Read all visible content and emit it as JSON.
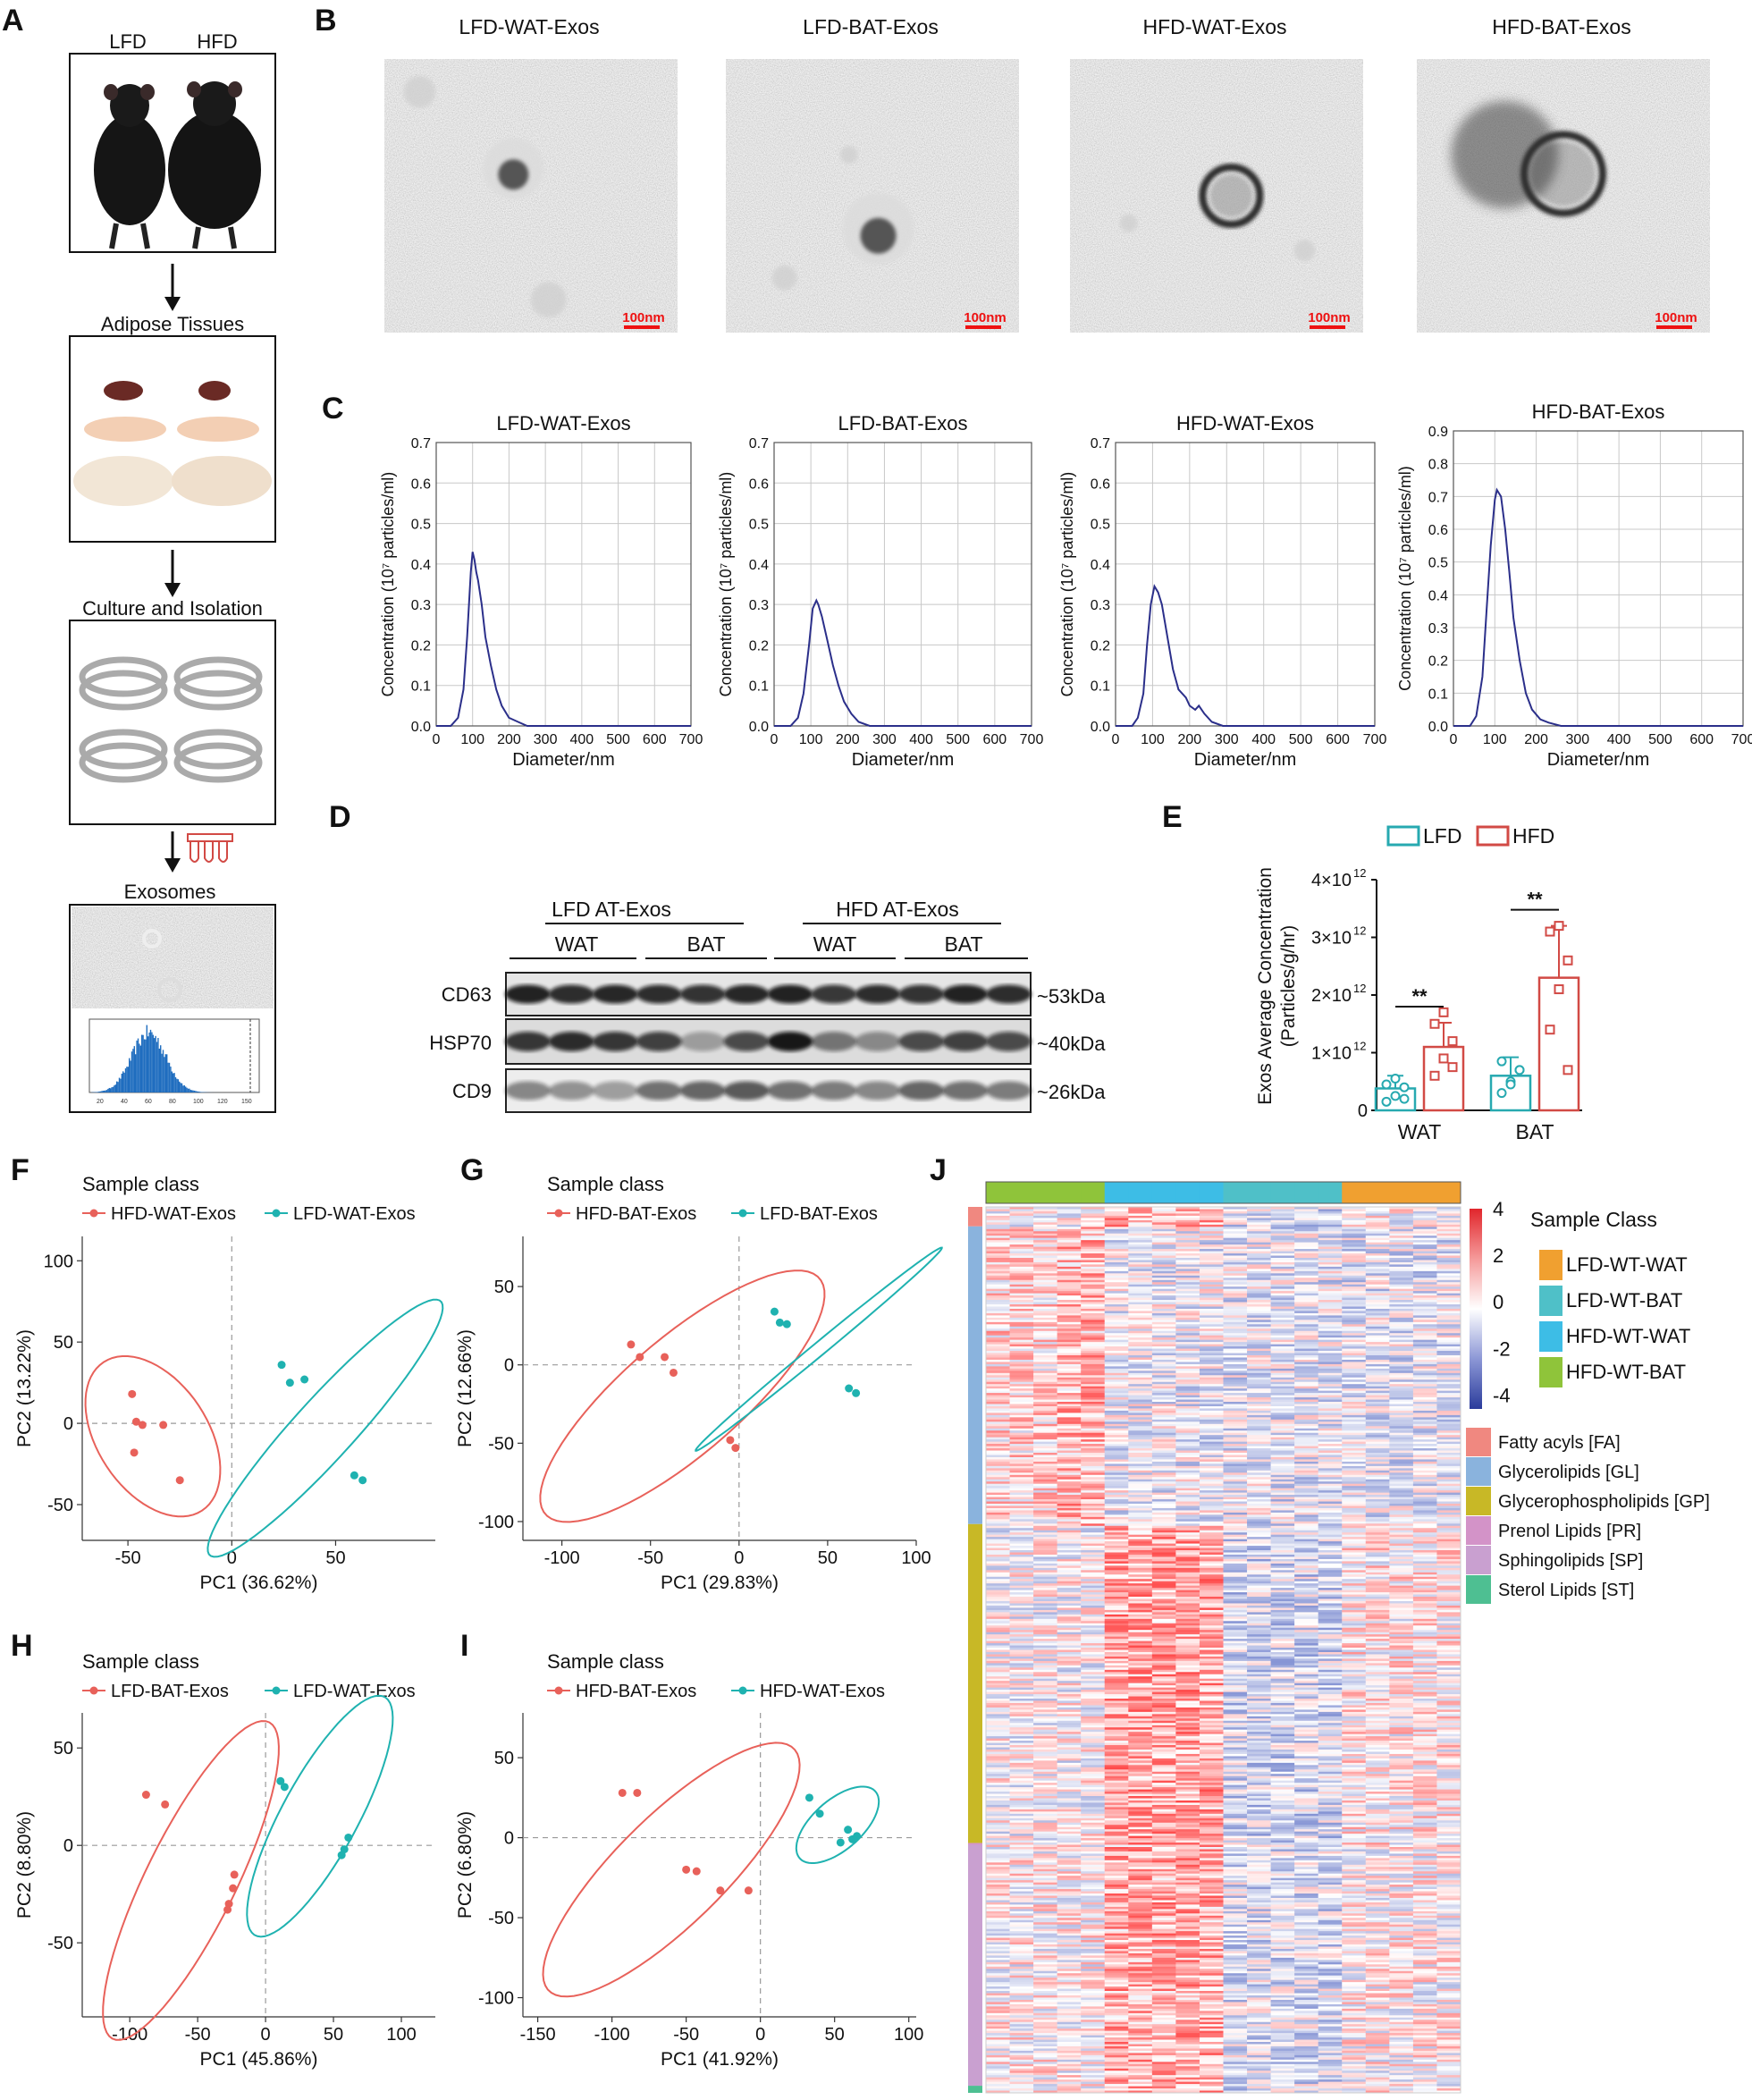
{
  "panel_letters": [
    "A",
    "B",
    "C",
    "D",
    "E",
    "F",
    "G",
    "H",
    "I",
    "J"
  ],
  "colors": {
    "red": "#e8615a",
    "teal": "#1fb2b0",
    "nta": "#2b2f8a",
    "bar_red": "#d24a45",
    "bar_teal": "#27a9b0"
  },
  "panel_a": {
    "labels": {
      "lfd": "LFD",
      "hfd": "HFD"
    },
    "steps": [
      "Adipose Tissues",
      "Culture and Isolation",
      "Exosomes"
    ],
    "hist_ticks": [
      "20",
      "40",
      "60",
      "80",
      "100",
      "120",
      "150"
    ]
  },
  "panel_b": {
    "titles": [
      "LFD-WAT-Exos",
      "LFD-BAT-Exos",
      "HFD-WAT-Exos",
      "HFD-BAT-Exos"
    ],
    "scale_label": "100nm"
  },
  "panel_c": {
    "ylabel": "Concentration (10⁷ particles/ml)",
    "xlabel": "Diameter/nm",
    "xticks": [
      "0",
      "100",
      "200",
      "300",
      "400",
      "500",
      "600",
      "700"
    ],
    "yticks": [
      [
        "0.0",
        "0.1",
        "0.2",
        "0.3",
        "0.4",
        "0.5",
        "0.6",
        "0.7"
      ],
      [
        "0.0",
        "0.1",
        "0.2",
        "0.3",
        "0.4",
        "0.5",
        "0.6",
        "0.7"
      ],
      [
        "0.0",
        "0.1",
        "0.2",
        "0.3",
        "0.4",
        "0.5",
        "0.6",
        "0.7"
      ],
      [
        "0.0",
        "0.1",
        "0.2",
        "0.3",
        "0.4",
        "0.5",
        "0.6",
        "0.7",
        "0.8",
        "0.9"
      ]
    ]
  },
  "panel_d": {
    "groups": [
      "LFD AT-Exos",
      "HFD AT-Exos"
    ],
    "tissues": [
      "WAT",
      "BAT",
      "WAT",
      "BAT"
    ],
    "bands": [
      "CD63",
      "HSP70",
      "CD9"
    ],
    "sizes": [
      "~53kDa",
      "~40kDa",
      "~26kDa"
    ]
  },
  "chart_data": [
    {
      "type": "line",
      "title": "LFD-WAT-Exos",
      "xlabel": "Diameter/nm",
      "ylabel": "Concentration (10⁷ particles/ml)",
      "xlim": [
        0,
        700
      ],
      "ylim": [
        0,
        0.7
      ],
      "grid": true,
      "x": [
        0,
        40,
        60,
        75,
        85,
        95,
        100,
        105,
        110,
        115,
        125,
        135,
        150,
        165,
        180,
        200,
        225,
        250,
        300,
        350,
        400,
        700
      ],
      "y": [
        0,
        0.0,
        0.02,
        0.09,
        0.22,
        0.38,
        0.43,
        0.41,
        0.38,
        0.36,
        0.3,
        0.22,
        0.15,
        0.09,
        0.05,
        0.02,
        0.01,
        0.0,
        0.0,
        0.0,
        0.0,
        0.0
      ]
    },
    {
      "type": "line",
      "title": "LFD-BAT-Exos",
      "xlabel": "Diameter/nm",
      "ylabel": "Concentration (10⁷ particles/ml)",
      "xlim": [
        0,
        700
      ],
      "ylim": [
        0,
        0.7
      ],
      "grid": true,
      "x": [
        0,
        45,
        65,
        80,
        95,
        105,
        115,
        120,
        130,
        145,
        160,
        175,
        190,
        210,
        230,
        260,
        300,
        350,
        700
      ],
      "y": [
        0,
        0.0,
        0.02,
        0.08,
        0.2,
        0.29,
        0.31,
        0.3,
        0.27,
        0.21,
        0.15,
        0.1,
        0.06,
        0.03,
        0.01,
        0.0,
        0.0,
        0.0,
        0.0
      ]
    },
    {
      "type": "line",
      "title": "HFD-WAT-Exos",
      "xlabel": "Diameter/nm",
      "ylabel": "Concentration (10⁷ particles/ml)",
      "xlim": [
        0,
        700
      ],
      "ylim": [
        0,
        0.7
      ],
      "grid": true,
      "x": [
        0,
        45,
        60,
        75,
        85,
        95,
        105,
        115,
        125,
        140,
        155,
        170,
        180,
        190,
        200,
        215,
        225,
        240,
        260,
        290,
        330,
        700
      ],
      "y": [
        0,
        0.0,
        0.02,
        0.08,
        0.2,
        0.3,
        0.345,
        0.33,
        0.3,
        0.22,
        0.14,
        0.09,
        0.08,
        0.07,
        0.05,
        0.04,
        0.05,
        0.03,
        0.01,
        0.0,
        0.0,
        0.0
      ]
    },
    {
      "type": "line",
      "title": "HFD-BAT-Exos",
      "xlabel": "Diameter/nm",
      "ylabel": "Concentration (10⁷ particles/ml)",
      "xlim": [
        0,
        700
      ],
      "ylim": [
        0,
        0.9
      ],
      "grid": true,
      "x": [
        0,
        40,
        55,
        70,
        80,
        90,
        100,
        105,
        115,
        125,
        135,
        145,
        160,
        175,
        190,
        210,
        230,
        260,
        300,
        700
      ],
      "y": [
        0,
        0.0,
        0.03,
        0.15,
        0.35,
        0.55,
        0.69,
        0.72,
        0.7,
        0.6,
        0.47,
        0.33,
        0.2,
        0.1,
        0.05,
        0.02,
        0.01,
        0.0,
        0.0,
        0.0
      ]
    },
    {
      "type": "bar",
      "title": "",
      "ylabel": "Exos Average Concentration (Particles/g/hr)",
      "categories": [
        "WAT",
        "BAT"
      ],
      "legend": [
        "LFD",
        "HFD"
      ],
      "ylim": [
        0,
        4000000000000.0
      ],
      "yticks": [
        "0",
        "1×10",
        "2×10",
        "3×10",
        "4×10"
      ],
      "ytick_exp": "12",
      "series": [
        {
          "name": "LFD",
          "values": [
            380000000000.0,
            600000000000.0
          ],
          "sd": [
            220000000000.0,
            320000000000.0
          ],
          "points": [
            [
              150000000000.0,
              250000000000.0,
              400000000000.0,
              450000000000.0,
              550000000000.0,
              200000000000.0
            ],
            [
              300000000000.0,
              500000000000.0,
              700000000000.0,
              850000000000.0,
              450000000000.0,
              700000000000.0
            ]
          ]
        },
        {
          "name": "HFD",
          "values": [
            1100000000000.0,
            2300000000000.0
          ],
          "sd": [
            420000000000.0,
            900000000000.0
          ],
          "points": [
            [
              600000000000.0,
              900000000000.0,
              1200000000000.0,
              1500000000000.0,
              1700000000000.0,
              750000000000.0
            ],
            [
              1400000000000.0,
              2100000000000.0,
              2600000000000.0,
              3100000000000.0,
              3200000000000.0,
              700000000000.0
            ]
          ]
        }
      ],
      "significance": [
        "**",
        "**"
      ]
    },
    {
      "type": "scatter",
      "legend_title": "Sample class",
      "xlabel": "PC1 (36.62%)",
      "ylabel": "PC2 (13.22%)",
      "xlim": [
        -72,
        98
      ],
      "ylim": [
        -72,
        115
      ],
      "xticks": [
        -50,
        0,
        50
      ],
      "yticks": [
        -50,
        0,
        50,
        100
      ],
      "series": [
        {
          "name": "HFD-WAT-Exos",
          "points": [
            [
              -48,
              18
            ],
            [
              -46,
              1
            ],
            [
              -43,
              -1
            ],
            [
              -33,
              -1
            ],
            [
              -47,
              -18
            ],
            [
              -25,
              -35
            ]
          ],
          "ellipse": {
            "cx": -38,
            "cy": -8,
            "rx": 28,
            "ry": 52,
            "rot": 22
          }
        },
        {
          "name": "LFD-WAT-Exos",
          "points": [
            [
              24,
              36
            ],
            [
              28,
              25
            ],
            [
              35,
              27
            ],
            [
              59,
              -32
            ],
            [
              63,
              -35
            ]
          ],
          "ellipse": {
            "cx": 45,
            "cy": -3,
            "rx": 16,
            "ry": 96,
            "rot": -35
          }
        }
      ]
    },
    {
      "type": "scatter",
      "legend_title": "Sample class",
      "xlabel": "PC1 (29.83%)",
      "ylabel": "PC2 (12.66%)",
      "xlim": [
        -122,
        100
      ],
      "ylim": [
        -112,
        82
      ],
      "xticks": [
        -100,
        -50,
        0,
        50,
        100
      ],
      "yticks": [
        -100,
        -50,
        0,
        50
      ],
      "series": [
        {
          "name": "HFD-BAT-Exos",
          "points": [
            [
              -61,
              13
            ],
            [
              -56,
              5
            ],
            [
              -42,
              5
            ],
            [
              -37,
              -5
            ],
            [
              -5,
              -48
            ],
            [
              -2,
              -53
            ]
          ],
          "ellipse": {
            "cx": -32,
            "cy": -20,
            "rx": 35,
            "ry": 108,
            "rot": -45
          }
        },
        {
          "name": "LFD-BAT-Exos",
          "points": [
            [
              20,
              34
            ],
            [
              23,
              27
            ],
            [
              27,
              26
            ],
            [
              62,
              -15
            ],
            [
              66,
              -18
            ]
          ],
          "ellipse": {
            "cx": 45,
            "cy": 10,
            "rx": 4,
            "ry": 95,
            "rot": -47
          }
        }
      ]
    },
    {
      "type": "scatter",
      "legend_title": "Sample class",
      "xlabel": "PC1 (45.86%)",
      "ylabel": "PC2 (8.80%)",
      "xlim": [
        -135,
        125
      ],
      "ylim": [
        -88,
        68
      ],
      "xticks": [
        -100,
        -50,
        0,
        50,
        100
      ],
      "yticks": [
        -50,
        0,
        50
      ],
      "series": [
        {
          "name": "LFD-BAT-Exos",
          "points": [
            [
              -88,
              26
            ],
            [
              -74,
              21
            ],
            [
              -23,
              -15
            ],
            [
              -24,
              -22
            ],
            [
              -27,
              -30
            ],
            [
              -28,
              -33
            ]
          ],
          "ellipse": {
            "cx": -55,
            "cy": -18,
            "rx": 30,
            "ry": 100,
            "rot": -37
          }
        },
        {
          "name": "LFD-WAT-Exos",
          "points": [
            [
              11,
              33
            ],
            [
              14,
              30
            ],
            [
              61,
              4
            ],
            [
              58,
              -2
            ],
            [
              56,
              -5
            ]
          ],
          "ellipse": {
            "cx": 40,
            "cy": 15,
            "rx": 25,
            "ry": 78,
            "rot": -40
          }
        }
      ]
    },
    {
      "type": "scatter",
      "legend_title": "Sample class",
      "xlabel": "PC1 (41.92%)",
      "ylabel": "PC2 (6.80%)",
      "xlim": [
        -160,
        105
      ],
      "ylim": [
        -112,
        78
      ],
      "xticks": [
        -150,
        -100,
        -50,
        0,
        50,
        100
      ],
      "yticks": [
        -100,
        -50,
        0,
        50
      ],
      "series": [
        {
          "name": "HFD-BAT-Exos",
          "points": [
            [
              -93,
              28
            ],
            [
              -83,
              28
            ],
            [
              -50,
              -20
            ],
            [
              -43,
              -21
            ],
            [
              -27,
              -33
            ],
            [
              -8,
              -33
            ]
          ],
          "ellipse": {
            "cx": -60,
            "cy": -20,
            "rx": 35,
            "ry": 112,
            "rot": -48
          }
        },
        {
          "name": "HFD-WAT-Exos",
          "points": [
            [
              33,
              25
            ],
            [
              40,
              15
            ],
            [
              59,
              5
            ],
            [
              62,
              -1
            ],
            [
              54,
              -3
            ],
            [
              65,
              1
            ]
          ],
          "ellipse": {
            "cx": 52,
            "cy": 8,
            "rx": 16,
            "ry": 33,
            "rot": -52
          }
        }
      ]
    },
    {
      "type": "heatmap",
      "legend_title": "Sample Class",
      "scale_ticks": [
        "4",
        "2",
        "0",
        "-2",
        "-4"
      ],
      "vmin": -4,
      "vmax": 4,
      "columns": [
        "HFD-WT-BAT",
        "HFD-WT-BAT",
        "HFD-WT-BAT",
        "HFD-WT-BAT",
        "HFD-WT-BAT",
        "HFD-WT-WAT",
        "HFD-WT-WAT",
        "HFD-WT-WAT",
        "HFD-WT-WAT",
        "HFD-WT-WAT",
        "LFD-WT-BAT",
        "LFD-WT-BAT",
        "LFD-WT-BAT",
        "LFD-WT-BAT",
        "LFD-WT-BAT",
        "LFD-WT-WAT",
        "LFD-WT-WAT",
        "LFD-WT-WAT",
        "LFD-WT-WAT",
        "LFD-WT-WAT"
      ],
      "sample_classes": [
        {
          "name": "LFD-WT-WAT",
          "color": "#f0a030"
        },
        {
          "name": "LFD-WT-BAT",
          "color": "#4fc0c8"
        },
        {
          "name": "HFD-WT-WAT",
          "color": "#3dbde6"
        },
        {
          "name": "HFD-WT-BAT",
          "color": "#8fc43a"
        }
      ],
      "lipid_classes": [
        {
          "name": "Fatty acyls [FA]",
          "color": "#f08880",
          "rows": 0.022
        },
        {
          "name": "Glycerolipids [GL]",
          "color": "#8ab3dd",
          "rows": 0.336
        },
        {
          "name": "Glycerophospholipids [GP]",
          "color": "#c8b826",
          "rows": 0.36
        },
        {
          "name": "Prenol Lipids [PR]",
          "color": "#d393c8",
          "rows": 0.002
        },
        {
          "name": "Sphingolipids [SP]",
          "color": "#c9a0d0",
          "rows": 0.272
        },
        {
          "name": "Sterol Lipids [ST]",
          "color": "#4ebf92",
          "rows": 0.008
        }
      ]
    }
  ]
}
